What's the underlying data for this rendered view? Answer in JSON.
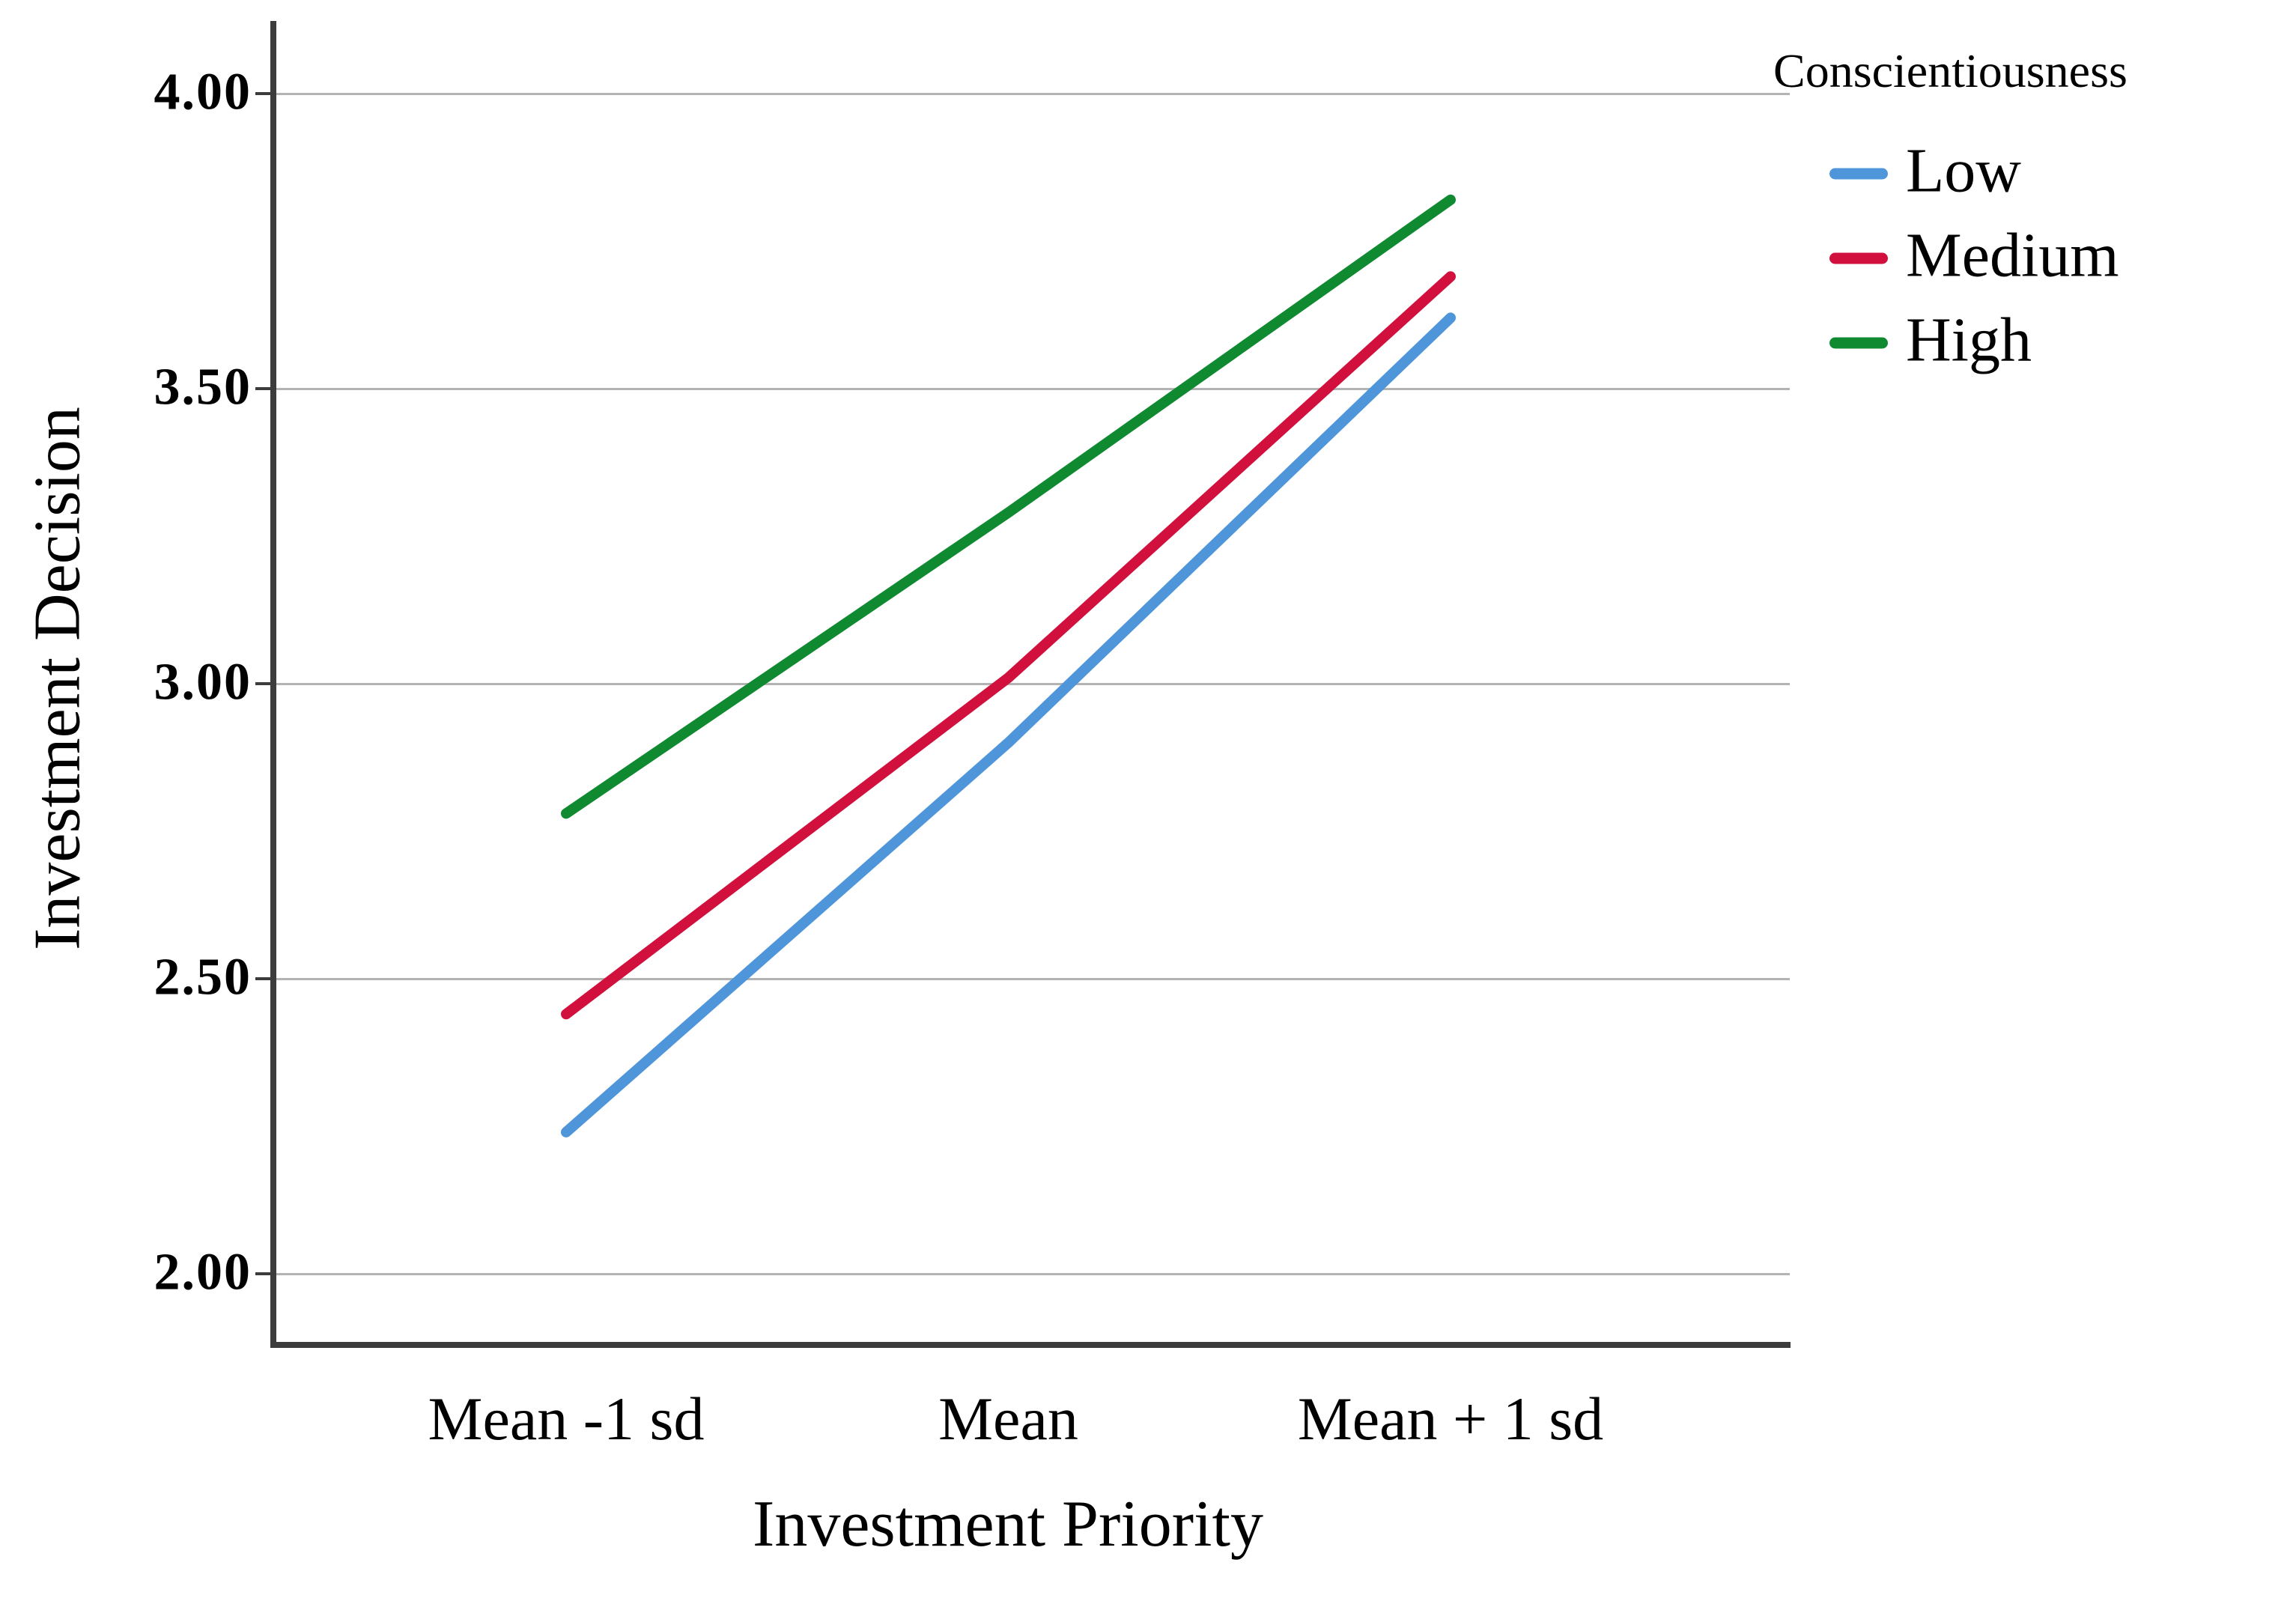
{
  "figure": {
    "background": "#ffffff"
  },
  "y_axis": {
    "title": "Investment Decision"
  },
  "x_axis": {
    "title": "Investment Priority"
  },
  "legend": {
    "title": "Conscientiousness",
    "entries": [
      {
        "label": "Low",
        "color": "#4e95da"
      },
      {
        "label": "Medium",
        "color": "#d2103d"
      },
      {
        "label": "High",
        "color": "#0f8a31"
      }
    ]
  },
  "chart_data": {
    "type": "line",
    "title": "",
    "categories": [
      "Mean -1 sd",
      "Mean",
      "Mean + 1 sd"
    ],
    "series": [
      {
        "name": "Low",
        "color": "#4e95da",
        "values": [
          2.24,
          2.9,
          3.62
        ]
      },
      {
        "name": "Medium",
        "color": "#d2103d",
        "values": [
          2.44,
          3.01,
          3.69
        ]
      },
      {
        "name": "High",
        "color": "#0f8a31",
        "values": [
          2.78,
          3.29,
          3.82
        ]
      }
    ],
    "xlabel": "Investment Priority",
    "ylabel": "Investment Decision",
    "ytick_labels": [
      "4.00",
      "3.50",
      "3.00",
      "2.50",
      "2.00"
    ],
    "ytick_values": [
      4.0,
      3.5,
      3.0,
      2.5,
      2.0
    ],
    "ylim": [
      1.88,
      4.12
    ],
    "grid": "horizontal",
    "legend_title": "Conscientiousness",
    "legend_position": "top-right-outside",
    "colors": {
      "axis": "#3c3c3c",
      "gridline": "#b3b3b3",
      "text": "#000000"
    }
  }
}
